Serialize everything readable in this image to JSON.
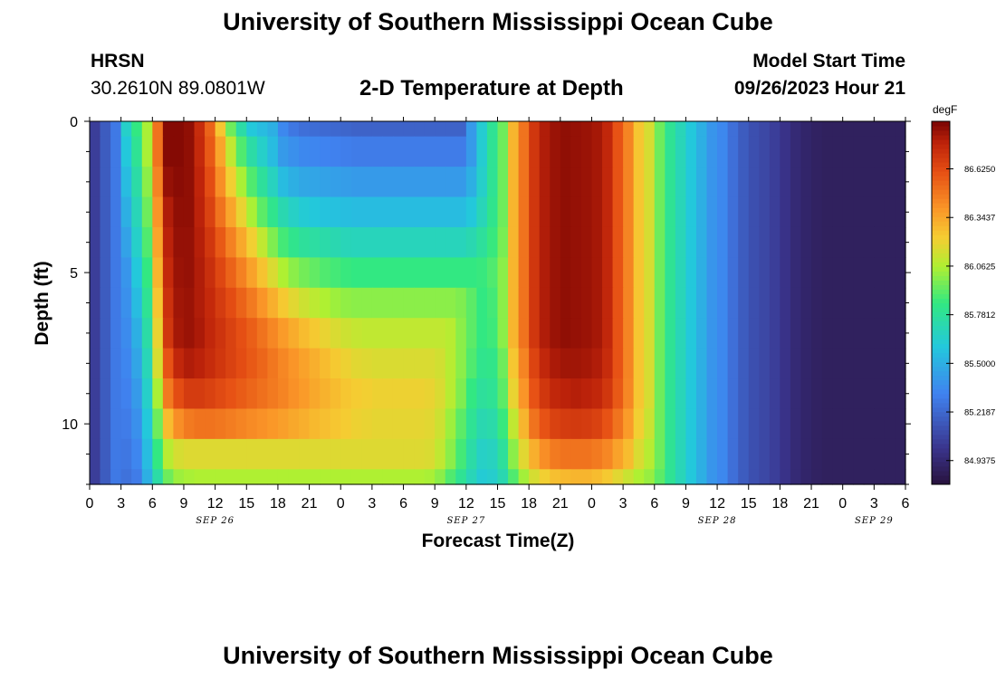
{
  "header": {
    "title": "University of Southern Mississippi Ocean Cube",
    "station": "HRSN",
    "coordinates": "30.2610N  89.0801W",
    "subtitle": "2-D Temperature at Depth",
    "model_start_label": "Model Start Time",
    "model_start_value": "09/26/2023 Hour 21"
  },
  "footer": {
    "title": "University of Southern Mississippi Ocean Cube"
  },
  "chart_data": {
    "type": "heatmap",
    "title": "2-D Temperature at Depth",
    "xlabel": "Forecast Time(Z)",
    "ylabel": "Depth (ft)",
    "x_range_hours": [
      0,
      78
    ],
    "x_start": "09/26/2023 00Z",
    "x_tick_labels": [
      "0",
      "3",
      "6",
      "9",
      "12",
      "15",
      "18",
      "21",
      "0",
      "3",
      "6",
      "9",
      "12",
      "15",
      "18",
      "21",
      "0",
      "3",
      "6",
      "9",
      "12",
      "15",
      "18",
      "21",
      "0",
      "3",
      "6"
    ],
    "date_labels": [
      {
        "label": "SEP 26",
        "hour": 12
      },
      {
        "label": "SEP 27",
        "hour": 36
      },
      {
        "label": "SEP 28",
        "hour": 60
      },
      {
        "label": "SEP 29",
        "hour": 75
      }
    ],
    "y_range_ft": [
      0,
      12
    ],
    "y_reversed": true,
    "y_tick_labels": [
      "0",
      "5",
      "10"
    ],
    "y_ticks_ft": [
      0,
      5,
      10
    ],
    "colorbar": {
      "unit": "degF",
      "min": 84.8,
      "max": 86.9,
      "tick_values": [
        86.625,
        86.3437,
        86.0625,
        85.7812,
        85.5,
        85.2187,
        84.9375
      ],
      "tick_labels": [
        "86.6250",
        "86.3437",
        "86.0625",
        "85.7812",
        "85.5000",
        "85.2187",
        "84.9375"
      ]
    },
    "depth_levels_ft": [
      0,
      1,
      2,
      3,
      4,
      5,
      6,
      7,
      8,
      9,
      10,
      11,
      12
    ],
    "time_step_hours": 1,
    "temperature_degF": [
      [
        85.05,
        85.17,
        85.29,
        85.65,
        85.85,
        86.05,
        86.5,
        86.88,
        86.88,
        86.86,
        86.74,
        86.55,
        86.25,
        85.95,
        85.75,
        85.6,
        85.55,
        85.5,
        85.35,
        85.28,
        85.25,
        85.24,
        85.23,
        85.22,
        85.21,
        85.2,
        85.2,
        85.2,
        85.2,
        85.2,
        85.2,
        85.2,
        85.2,
        85.2,
        85.2,
        85.2,
        85.42,
        85.63,
        85.8,
        85.95,
        86.3,
        86.5,
        86.7,
        86.8,
        86.84,
        86.86,
        86.85,
        86.84,
        86.82,
        86.76,
        86.6,
        86.45,
        86.25,
        86.15,
        85.95,
        85.8,
        85.7,
        85.6,
        85.5,
        85.4,
        85.35,
        85.25,
        85.17,
        85.12,
        85.09,
        85.05,
        85.0,
        84.95,
        84.92,
        84.9,
        84.89,
        84.89,
        84.89,
        84.89,
        84.89,
        84.89,
        84.89,
        84.89
      ],
      [
        85.05,
        85.17,
        85.29,
        85.6,
        85.8,
        86.05,
        86.5,
        86.88,
        86.88,
        86.86,
        86.75,
        86.58,
        86.35,
        86.1,
        85.9,
        85.75,
        85.65,
        85.55,
        85.42,
        85.38,
        85.35,
        85.34,
        85.33,
        85.32,
        85.31,
        85.3,
        85.3,
        85.3,
        85.3,
        85.3,
        85.3,
        85.3,
        85.3,
        85.3,
        85.3,
        85.3,
        85.42,
        85.63,
        85.8,
        85.95,
        86.3,
        86.5,
        86.7,
        86.8,
        86.84,
        86.86,
        86.85,
        86.84,
        86.82,
        86.76,
        86.6,
        86.45,
        86.25,
        86.15,
        85.95,
        85.8,
        85.7,
        85.6,
        85.5,
        85.4,
        85.35,
        85.25,
        85.17,
        85.12,
        85.09,
        85.05,
        85.0,
        84.95,
        84.92,
        84.9,
        84.89,
        84.89,
        84.89,
        84.89,
        84.89,
        84.89,
        84.89,
        84.89
      ],
      [
        85.05,
        85.17,
        85.29,
        85.55,
        85.75,
        86.0,
        86.45,
        86.85,
        86.87,
        86.86,
        86.77,
        86.62,
        86.42,
        86.22,
        86.05,
        85.9,
        85.78,
        85.68,
        85.55,
        85.5,
        85.47,
        85.46,
        85.45,
        85.44,
        85.43,
        85.42,
        85.42,
        85.42,
        85.42,
        85.42,
        85.42,
        85.42,
        85.42,
        85.42,
        85.42,
        85.42,
        85.5,
        85.65,
        85.8,
        85.95,
        86.3,
        86.5,
        86.7,
        86.8,
        86.84,
        86.86,
        86.85,
        86.84,
        86.82,
        86.76,
        86.6,
        86.45,
        86.25,
        86.15,
        85.95,
        85.8,
        85.7,
        85.6,
        85.5,
        85.4,
        85.35,
        85.25,
        85.17,
        85.12,
        85.09,
        85.05,
        85.0,
        84.95,
        84.92,
        84.9,
        84.89,
        84.89,
        84.89,
        84.89,
        84.89,
        84.89,
        84.89,
        84.89
      ],
      [
        85.05,
        85.17,
        85.29,
        85.5,
        85.7,
        85.95,
        86.4,
        86.8,
        86.86,
        86.86,
        86.78,
        86.66,
        86.5,
        86.35,
        86.2,
        86.05,
        85.92,
        85.82,
        85.72,
        85.66,
        85.62,
        85.6,
        85.58,
        85.57,
        85.56,
        85.55,
        85.55,
        85.55,
        85.55,
        85.55,
        85.55,
        85.55,
        85.55,
        85.55,
        85.55,
        85.55,
        85.6,
        85.7,
        85.82,
        85.95,
        86.3,
        86.5,
        86.7,
        86.8,
        86.84,
        86.86,
        86.85,
        86.84,
        86.82,
        86.76,
        86.6,
        86.45,
        86.25,
        86.15,
        85.95,
        85.8,
        85.7,
        85.6,
        85.5,
        85.4,
        85.35,
        85.25,
        85.17,
        85.12,
        85.09,
        85.05,
        85.0,
        84.95,
        84.92,
        84.9,
        84.89,
        84.89,
        84.89,
        84.89,
        84.89,
        84.89,
        84.89,
        84.89
      ],
      [
        85.05,
        85.17,
        85.29,
        85.45,
        85.65,
        85.9,
        86.35,
        86.78,
        86.85,
        86.85,
        86.79,
        86.7,
        86.58,
        86.46,
        86.34,
        86.22,
        86.1,
        85.98,
        85.88,
        85.82,
        85.78,
        85.76,
        85.74,
        85.72,
        85.7,
        85.69,
        85.69,
        85.69,
        85.69,
        85.69,
        85.69,
        85.69,
        85.69,
        85.69,
        85.69,
        85.69,
        85.72,
        85.78,
        85.86,
        85.97,
        86.3,
        86.5,
        86.7,
        86.8,
        86.84,
        86.86,
        86.85,
        86.84,
        86.82,
        86.76,
        86.6,
        86.45,
        86.25,
        86.15,
        85.95,
        85.8,
        85.7,
        85.6,
        85.5,
        85.4,
        85.35,
        85.25,
        85.17,
        85.12,
        85.09,
        85.05,
        85.0,
        84.95,
        84.92,
        84.9,
        84.89,
        84.89,
        84.89,
        84.89,
        84.89,
        84.89,
        84.89,
        84.89
      ],
      [
        85.05,
        85.17,
        85.29,
        85.4,
        85.6,
        85.85,
        86.3,
        86.75,
        86.84,
        86.85,
        86.8,
        86.73,
        86.64,
        86.55,
        86.46,
        86.36,
        86.26,
        86.16,
        86.06,
        86.0,
        85.96,
        85.93,
        85.9,
        85.88,
        85.86,
        85.85,
        85.85,
        85.85,
        85.85,
        85.85,
        85.85,
        85.85,
        85.85,
        85.85,
        85.85,
        85.85,
        85.85,
        85.86,
        85.9,
        86.0,
        86.3,
        86.5,
        86.7,
        86.8,
        86.84,
        86.86,
        86.85,
        86.84,
        86.82,
        86.76,
        86.6,
        86.45,
        86.25,
        86.15,
        85.95,
        85.8,
        85.7,
        85.6,
        85.5,
        85.4,
        85.35,
        85.25,
        85.17,
        85.12,
        85.09,
        85.05,
        85.0,
        84.95,
        84.92,
        84.9,
        84.89,
        84.89,
        84.89,
        84.89,
        84.89,
        84.89,
        84.89,
        84.89
      ],
      [
        85.05,
        85.17,
        85.29,
        85.38,
        85.55,
        85.8,
        86.25,
        86.72,
        86.83,
        86.84,
        86.8,
        86.75,
        86.68,
        86.62,
        86.55,
        86.48,
        86.4,
        86.32,
        86.24,
        86.18,
        86.13,
        86.09,
        86.06,
        86.03,
        86.01,
        86.0,
        86.0,
        86.0,
        86.0,
        86.0,
        86.0,
        86.0,
        86.0,
        86.0,
        86.0,
        85.98,
        85.92,
        85.85,
        85.88,
        86.0,
        86.3,
        86.5,
        86.7,
        86.8,
        86.84,
        86.86,
        86.85,
        86.84,
        86.82,
        86.76,
        86.6,
        86.45,
        86.25,
        86.15,
        85.95,
        85.8,
        85.7,
        85.6,
        85.5,
        85.4,
        85.35,
        85.25,
        85.17,
        85.12,
        85.09,
        85.05,
        85.0,
        84.95,
        84.92,
        84.9,
        84.89,
        84.89,
        84.89,
        84.89,
        84.89,
        84.89,
        84.89,
        84.89
      ],
      [
        85.05,
        85.17,
        85.29,
        85.36,
        85.5,
        85.75,
        86.2,
        86.7,
        86.82,
        86.84,
        86.81,
        86.76,
        86.71,
        86.66,
        86.61,
        86.56,
        86.5,
        86.44,
        86.38,
        86.33,
        86.28,
        86.24,
        86.2,
        86.16,
        86.13,
        86.11,
        86.1,
        86.1,
        86.1,
        86.1,
        86.1,
        86.1,
        86.1,
        86.1,
        86.08,
        86.0,
        85.92,
        85.85,
        85.87,
        86.0,
        86.3,
        86.5,
        86.7,
        86.8,
        86.84,
        86.86,
        86.85,
        86.84,
        86.82,
        86.76,
        86.6,
        86.45,
        86.25,
        86.15,
        85.95,
        85.8,
        85.7,
        85.6,
        85.5,
        85.4,
        85.35,
        85.25,
        85.17,
        85.12,
        85.09,
        85.05,
        85.0,
        84.95,
        84.92,
        84.9,
        84.89,
        84.89,
        84.89,
        84.89,
        84.89,
        84.89,
        84.89,
        84.89
      ],
      [
        85.05,
        85.17,
        85.29,
        85.34,
        85.46,
        85.7,
        86.15,
        86.6,
        86.76,
        86.8,
        86.78,
        86.74,
        86.7,
        86.66,
        86.62,
        86.58,
        86.54,
        86.49,
        86.44,
        86.4,
        86.36,
        86.32,
        86.28,
        86.24,
        86.21,
        86.18,
        86.17,
        86.16,
        86.16,
        86.16,
        86.16,
        86.16,
        86.16,
        86.14,
        86.08,
        86.0,
        85.9,
        85.82,
        85.83,
        85.95,
        86.25,
        86.45,
        86.65,
        86.76,
        86.81,
        86.83,
        86.83,
        86.82,
        86.8,
        86.74,
        86.6,
        86.45,
        86.25,
        86.15,
        85.95,
        85.8,
        85.7,
        85.6,
        85.5,
        85.4,
        85.35,
        85.25,
        85.17,
        85.12,
        85.09,
        85.05,
        85.0,
        84.95,
        84.92,
        84.9,
        84.89,
        84.89,
        84.89,
        84.89,
        84.89,
        84.89,
        84.89,
        84.89
      ],
      [
        85.05,
        85.17,
        85.29,
        85.32,
        85.42,
        85.65,
        86.05,
        86.48,
        86.62,
        86.68,
        86.68,
        86.66,
        86.63,
        86.6,
        86.57,
        86.54,
        86.51,
        86.48,
        86.45,
        86.41,
        86.38,
        86.34,
        86.31,
        86.28,
        86.25,
        86.23,
        86.22,
        86.21,
        86.21,
        86.21,
        86.21,
        86.21,
        86.2,
        86.16,
        86.08,
        85.98,
        85.85,
        85.78,
        85.8,
        85.92,
        86.2,
        86.4,
        86.6,
        86.7,
        86.76,
        86.78,
        86.79,
        86.78,
        86.76,
        86.7,
        86.58,
        86.44,
        86.25,
        86.15,
        85.95,
        85.8,
        85.7,
        85.6,
        85.5,
        85.4,
        85.35,
        85.25,
        85.17,
        85.12,
        85.09,
        85.05,
        85.0,
        84.95,
        84.92,
        84.9,
        84.89,
        84.89,
        84.89,
        84.89,
        84.89,
        84.89,
        84.89,
        84.89
      ],
      [
        85.05,
        85.17,
        85.29,
        85.3,
        85.38,
        85.6,
        85.95,
        86.28,
        86.42,
        86.48,
        86.5,
        86.5,
        86.49,
        86.47,
        86.45,
        86.43,
        86.41,
        86.39,
        86.37,
        86.34,
        86.32,
        86.29,
        86.27,
        86.25,
        86.23,
        86.21,
        86.2,
        86.19,
        86.19,
        86.19,
        86.19,
        86.19,
        86.18,
        86.13,
        86.03,
        85.92,
        85.8,
        85.72,
        85.74,
        85.86,
        86.1,
        86.3,
        86.5,
        86.6,
        86.66,
        86.68,
        86.69,
        86.68,
        86.66,
        86.6,
        86.5,
        86.38,
        86.22,
        86.12,
        85.95,
        85.8,
        85.7,
        85.6,
        85.5,
        85.4,
        85.35,
        85.25,
        85.17,
        85.12,
        85.09,
        85.05,
        85.0,
        84.95,
        84.92,
        84.9,
        84.89,
        84.89,
        84.89,
        84.89,
        84.89,
        84.89,
        84.89,
        84.89
      ],
      [
        85.05,
        85.17,
        85.29,
        85.28,
        85.34,
        85.55,
        85.85,
        86.08,
        86.15,
        86.17,
        86.17,
        86.17,
        86.17,
        86.17,
        86.17,
        86.17,
        86.17,
        86.17,
        86.17,
        86.17,
        86.17,
        86.17,
        86.17,
        86.17,
        86.17,
        86.17,
        86.17,
        86.17,
        86.17,
        86.17,
        86.17,
        86.17,
        86.16,
        86.1,
        86.0,
        85.88,
        85.75,
        85.66,
        85.68,
        85.78,
        86.0,
        86.18,
        86.32,
        86.42,
        86.48,
        86.5,
        86.5,
        86.5,
        86.48,
        86.44,
        86.36,
        86.28,
        86.16,
        86.08,
        85.95,
        85.8,
        85.7,
        85.6,
        85.5,
        85.4,
        85.35,
        85.25,
        85.17,
        85.12,
        85.09,
        85.05,
        85.0,
        84.95,
        84.92,
        84.9,
        84.89,
        84.89,
        84.89,
        84.89,
        84.89,
        84.89,
        84.89,
        84.89
      ],
      [
        85.05,
        85.17,
        85.29,
        85.26,
        85.3,
        85.5,
        85.75,
        85.95,
        86.03,
        86.05,
        86.06,
        86.06,
        86.06,
        86.06,
        86.06,
        86.06,
        86.06,
        86.06,
        86.06,
        86.06,
        86.06,
        86.06,
        86.06,
        86.06,
        86.06,
        86.06,
        86.06,
        86.06,
        86.06,
        86.06,
        86.06,
        86.06,
        86.05,
        86.0,
        85.9,
        85.8,
        85.7,
        85.62,
        85.64,
        85.72,
        85.9,
        86.04,
        86.15,
        86.22,
        86.27,
        86.29,
        86.3,
        86.3,
        86.28,
        86.24,
        86.18,
        86.12,
        86.06,
        86.02,
        85.92,
        85.8,
        85.7,
        85.6,
        85.5,
        85.4,
        85.35,
        85.25,
        85.17,
        85.12,
        85.09,
        85.05,
        85.0,
        84.95,
        84.92,
        84.9,
        84.89,
        84.89,
        84.89,
        84.89,
        84.89,
        84.89,
        84.89,
        84.89
      ]
    ]
  }
}
